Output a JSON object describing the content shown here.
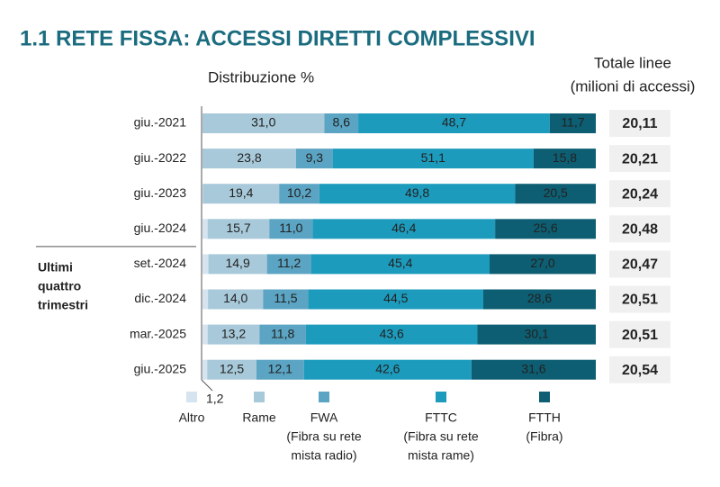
{
  "chart_data": {
    "type": "stacked-barh",
    "title": "1.1 RETE FISSA: ACCESSI DIRETTI COMPLESSIVI",
    "xlabel": "Distribuzione %",
    "xlim": [
      0,
      100
    ],
    "categories": [
      "giu.-2021",
      "giu.-2022",
      "giu.-2023",
      "giu.-2024",
      "set.-2024",
      "dic.-2024",
      "mar.-2025",
      "giu.-2025"
    ],
    "group": {
      "label": [
        "Ultimi",
        "quattro",
        "trimestri"
      ],
      "from": 4
    },
    "series": [
      {
        "name": "Altro",
        "description": [],
        "color": "#d6e4ef",
        "text_color": "#222",
        "values": [
          0,
          0,
          0.1,
          1.3,
          1.5,
          1.4,
          1.3,
          1.2
        ],
        "value_labels": [
          null,
          null,
          null,
          null,
          null,
          null,
          null,
          "1,2"
        ]
      },
      {
        "name": "Rame",
        "description": [],
        "color": "#a8c9da",
        "text_color": "#222",
        "values": [
          31.0,
          23.8,
          19.4,
          15.7,
          14.9,
          14.0,
          13.2,
          12.5
        ],
        "value_labels": [
          "31,0",
          "23,8",
          "19,4",
          "15,7",
          "14,9",
          "14,0",
          "13,2",
          "12,5"
        ]
      },
      {
        "name": "FWA",
        "description": [
          "(Fibra su rete",
          "mista radio)"
        ],
        "color": "#5ba4c3",
        "text_color": "#222",
        "values": [
          8.6,
          9.3,
          10.2,
          11.0,
          11.2,
          11.5,
          11.8,
          12.1
        ],
        "value_labels": [
          "8,6",
          "9,3",
          "10,2",
          "11,0",
          "11,2",
          "11,5",
          "11,8",
          "12,1"
        ]
      },
      {
        "name": "FTTC",
        "description": [
          "(Fibra su rete",
          "mista rame)"
        ],
        "color": "#1d9bbd",
        "text_color": "#fff",
        "values": [
          48.7,
          51.1,
          49.8,
          46.4,
          45.4,
          44.5,
          43.6,
          42.6
        ],
        "value_labels": [
          "48,7",
          "51,1",
          "49,8",
          "46,4",
          "45,4",
          "44,5",
          "43,6",
          "42,6"
        ]
      },
      {
        "name": "FTTH",
        "description": [
          "(Fibra)"
        ],
        "color": "#0d5e72",
        "text_color": "#fff",
        "values": [
          11.7,
          15.8,
          20.5,
          25.6,
          27.0,
          28.6,
          30.1,
          31.6
        ],
        "value_labels": [
          "11,7",
          "15,8",
          "20,5",
          "25,6",
          "27,0",
          "28,6",
          "30,1",
          "31,6"
        ]
      }
    ],
    "totals": {
      "title": [
        "Totale linee",
        "(milioni di accessi)"
      ],
      "values": [
        20.11,
        20.21,
        20.24,
        20.48,
        20.47,
        20.51,
        20.51,
        20.54
      ],
      "value_labels": [
        "20,11",
        "20,21",
        "20,24",
        "20,48",
        "20,47",
        "20,51",
        "20,51",
        "20,54"
      ]
    }
  }
}
